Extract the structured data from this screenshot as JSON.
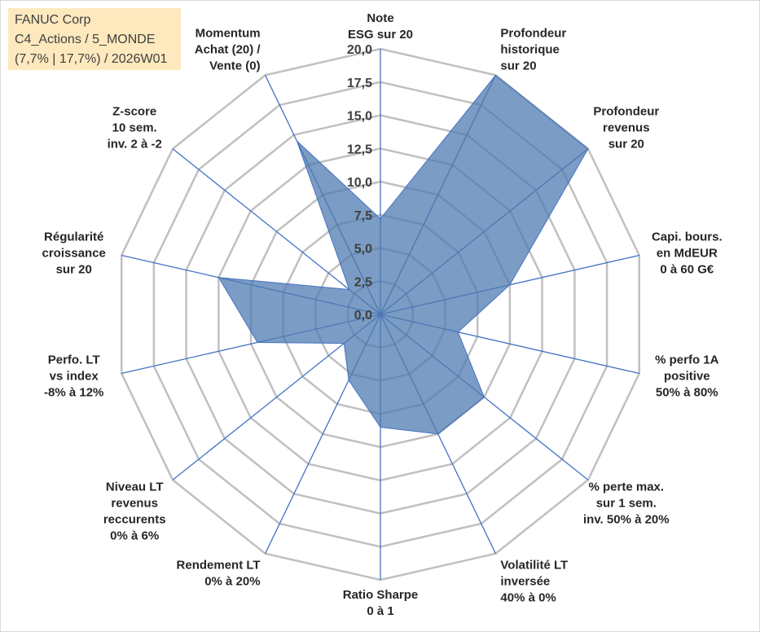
{
  "info_box": {
    "line1": "FANUC Corp",
    "line2": "C4_Actions / 5_MONDE",
    "line3": "(7,7% | 17,7%) / 2026W01"
  },
  "colors": {
    "fill": "#4f7bb0",
    "stroke": "#4472c4",
    "ring": "#c0c0c0",
    "spoke": "#4472c4",
    "box": "#fde9bd"
  },
  "chart_data": {
    "type": "radar",
    "title": "",
    "rmin": 0,
    "rmax": 20,
    "ticks": [
      "0,0",
      "2,5",
      "5,0",
      "7,5",
      "10,0",
      "12,5",
      "15,0",
      "17,5",
      "20,0"
    ],
    "categories": [
      [
        "Note",
        "ESG sur 20"
      ],
      [
        "Profondeur",
        "historique",
        "sur 20"
      ],
      [
        "Profondeur",
        "revenus",
        "sur 20"
      ],
      [
        "Capi. bours.",
        "en MdEUR",
        "0 à 60 G€"
      ],
      [
        "% perfo 1A",
        "positive",
        "50% à 80%"
      ],
      [
        "% perte max.",
        "sur 1 sem.",
        "inv. 50% à 20%"
      ],
      [
        "Volatilité LT",
        "inversée",
        "40% à 0%"
      ],
      [
        "Ratio Sharpe",
        "0 à 1"
      ],
      [
        "Rendement LT",
        "0% à 20%"
      ],
      [
        "Niveau LT",
        "revenus",
        "reccurents",
        "0% à 6%"
      ],
      [
        "Perfo. LT",
        "vs index",
        "-8% à 12%"
      ],
      [
        "Régularité",
        "croissance",
        "sur 20"
      ],
      [
        "Z-score",
        "10 sem.",
        "inv. 2 à -2"
      ],
      [
        "Momentum",
        "Achat (20) /",
        "Vente (0)"
      ]
    ],
    "series": [
      {
        "values": [
          7.2,
          20.0,
          20.0,
          10.0,
          6.0,
          10.0,
          10.0,
          8.5,
          5.5,
          3.5,
          9.5,
          12.5,
          3.0,
          14.5
        ]
      }
    ]
  }
}
